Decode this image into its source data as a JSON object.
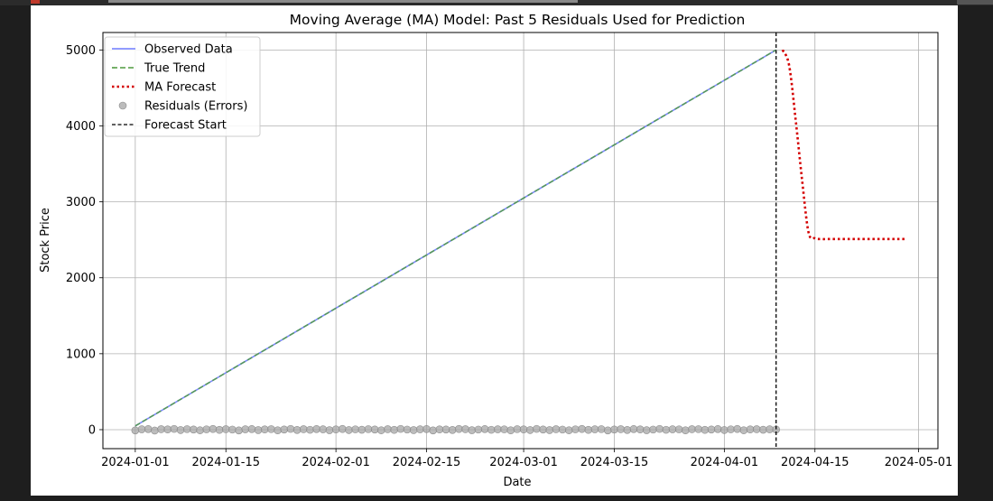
{
  "chart_data": {
    "type": "line",
    "title": "Moving Average (MA) Model: Past 5 Residuals Used for Prediction",
    "xlabel": "Date",
    "ylabel": "Stock Price",
    "xlim": [
      "2023-12-27",
      "2024-05-04"
    ],
    "ylim": [
      -250,
      5230
    ],
    "x_ticks": [
      "2024-01-01",
      "2024-01-15",
      "2024-02-01",
      "2024-02-15",
      "2024-03-01",
      "2024-03-15",
      "2024-04-01",
      "2024-04-15",
      "2024-05-01"
    ],
    "y_ticks": [
      0,
      1000,
      2000,
      3000,
      4000,
      5000
    ],
    "grid": true,
    "legend_position": "top-left",
    "series": [
      {
        "name": "Observed Data",
        "style": "solid",
        "color": "#6f7bff",
        "x": [
          "2024-01-01",
          "2024-04-09"
        ],
        "y": [
          50,
          5000
        ]
      },
      {
        "name": "True Trend",
        "style": "dashed",
        "color": "#4f9a3f",
        "x": [
          "2024-01-01",
          "2024-04-09"
        ],
        "y": [
          50,
          5000
        ]
      },
      {
        "name": "MA Forecast",
        "style": "dotted",
        "color": "#d40000",
        "x": [
          "2024-04-10",
          "2024-04-11",
          "2024-04-12",
          "2024-04-13",
          "2024-04-14",
          "2024-04-15",
          "2024-04-16",
          "2024-04-17",
          "2024-04-18",
          "2024-04-19",
          "2024-04-20",
          "2024-04-21",
          "2024-04-22",
          "2024-04-23",
          "2024-04-24",
          "2024-04-25",
          "2024-04-26",
          "2024-04-27",
          "2024-04-28",
          "2024-04-29"
        ],
        "y": [
          5000,
          4800,
          4100,
          3300,
          2600,
          2520,
          2510,
          2510,
          2510,
          2510,
          2510,
          2510,
          2510,
          2510,
          2510,
          2510,
          2510,
          2510,
          2510,
          2510
        ]
      },
      {
        "name": "Residuals (Errors)",
        "style": "markers",
        "color": "#a6a6a6",
        "x_start": "2024-01-01",
        "y": [
          -10,
          5,
          8,
          -12,
          6,
          3,
          10,
          -5,
          7,
          2,
          -8,
          4,
          9,
          -3,
          6,
          1,
          -10,
          5,
          8,
          -6,
          3,
          7,
          -9,
          2,
          10,
          -4,
          6,
          -2,
          8,
          5,
          -7,
          3,
          9,
          -5,
          4,
          -1,
          7,
          2,
          -8,
          6,
          -3,
          10,
          1,
          -6,
          5,
          8,
          -10,
          3,
          2,
          -4,
          9,
          6,
          -7,
          1,
          8,
          -2,
          5,
          4,
          -9,
          7,
          3,
          -5,
          10,
          2,
          -6,
          6,
          1,
          -8,
          4,
          9,
          -3,
          5,
          7,
          -10,
          2,
          6,
          -4,
          8,
          3,
          -7,
          1,
          10,
          -2,
          5,
          4,
          -9,
          6,
          7,
          -3,
          2,
          8,
          -5,
          4,
          9,
          -8,
          3,
          6,
          -1,
          5,
          2
        ]
      }
    ],
    "vlines": [
      {
        "name": "Forecast Start",
        "x": "2024-04-09",
        "style": "dashed",
        "color": "#000000"
      }
    ]
  }
}
